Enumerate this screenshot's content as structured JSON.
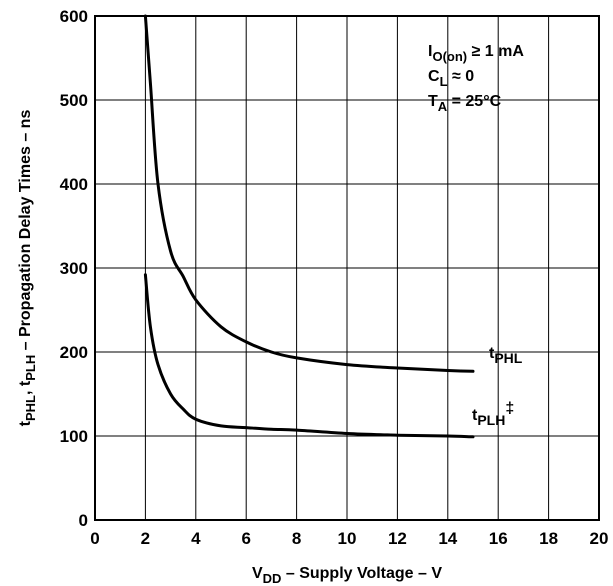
{
  "chart_data": {
    "type": "line",
    "xlabel": {
      "main": "V",
      "sub": "DD",
      "rest": " – Supply Voltage – V"
    },
    "ylabel": {
      "p1": "t",
      "s1": "PHL",
      "p2": ", t",
      "s2": "PLH",
      "rest": " – Propagation Delay Times – ns"
    },
    "xlim": [
      0,
      20
    ],
    "ylim": [
      0,
      600
    ],
    "xticks": [
      0,
      2,
      4,
      6,
      8,
      10,
      12,
      14,
      16,
      18,
      20
    ],
    "yticks": [
      0,
      100,
      200,
      300,
      400,
      500,
      600
    ],
    "grid": true,
    "conditions": [
      {
        "main": "I",
        "sub": "O(on)",
        "rest": " ≥ 1 mA"
      },
      {
        "main": "C",
        "sub": "L",
        "rest": " ≈ 0"
      },
      {
        "main": "T",
        "sub": "A",
        "rest": " = 25°C"
      }
    ],
    "series": [
      {
        "name": "tPHL",
        "label": {
          "main": "t",
          "sub": "PHL",
          "sup": ""
        },
        "x": [
          2.0,
          2.2,
          2.5,
          3.0,
          3.5,
          4.0,
          5.0,
          6.0,
          7.0,
          8.0,
          10.0,
          12.0,
          14.0,
          15.0
        ],
        "y": [
          600,
          520,
          400,
          320,
          290,
          262,
          230,
          212,
          200,
          193,
          185,
          181,
          178,
          177
        ]
      },
      {
        "name": "tPLH‡",
        "label": {
          "main": "t",
          "sub": "PLH",
          "sup": "‡"
        },
        "x": [
          2.0,
          2.2,
          2.5,
          3.0,
          3.5,
          4.0,
          5.0,
          6.0,
          7.0,
          8.0,
          10.0,
          12.0,
          14.0,
          15.0
        ],
        "y": [
          292,
          230,
          185,
          150,
          132,
          120,
          112,
          110,
          108,
          107,
          103,
          101,
          100,
          99
        ]
      }
    ]
  }
}
